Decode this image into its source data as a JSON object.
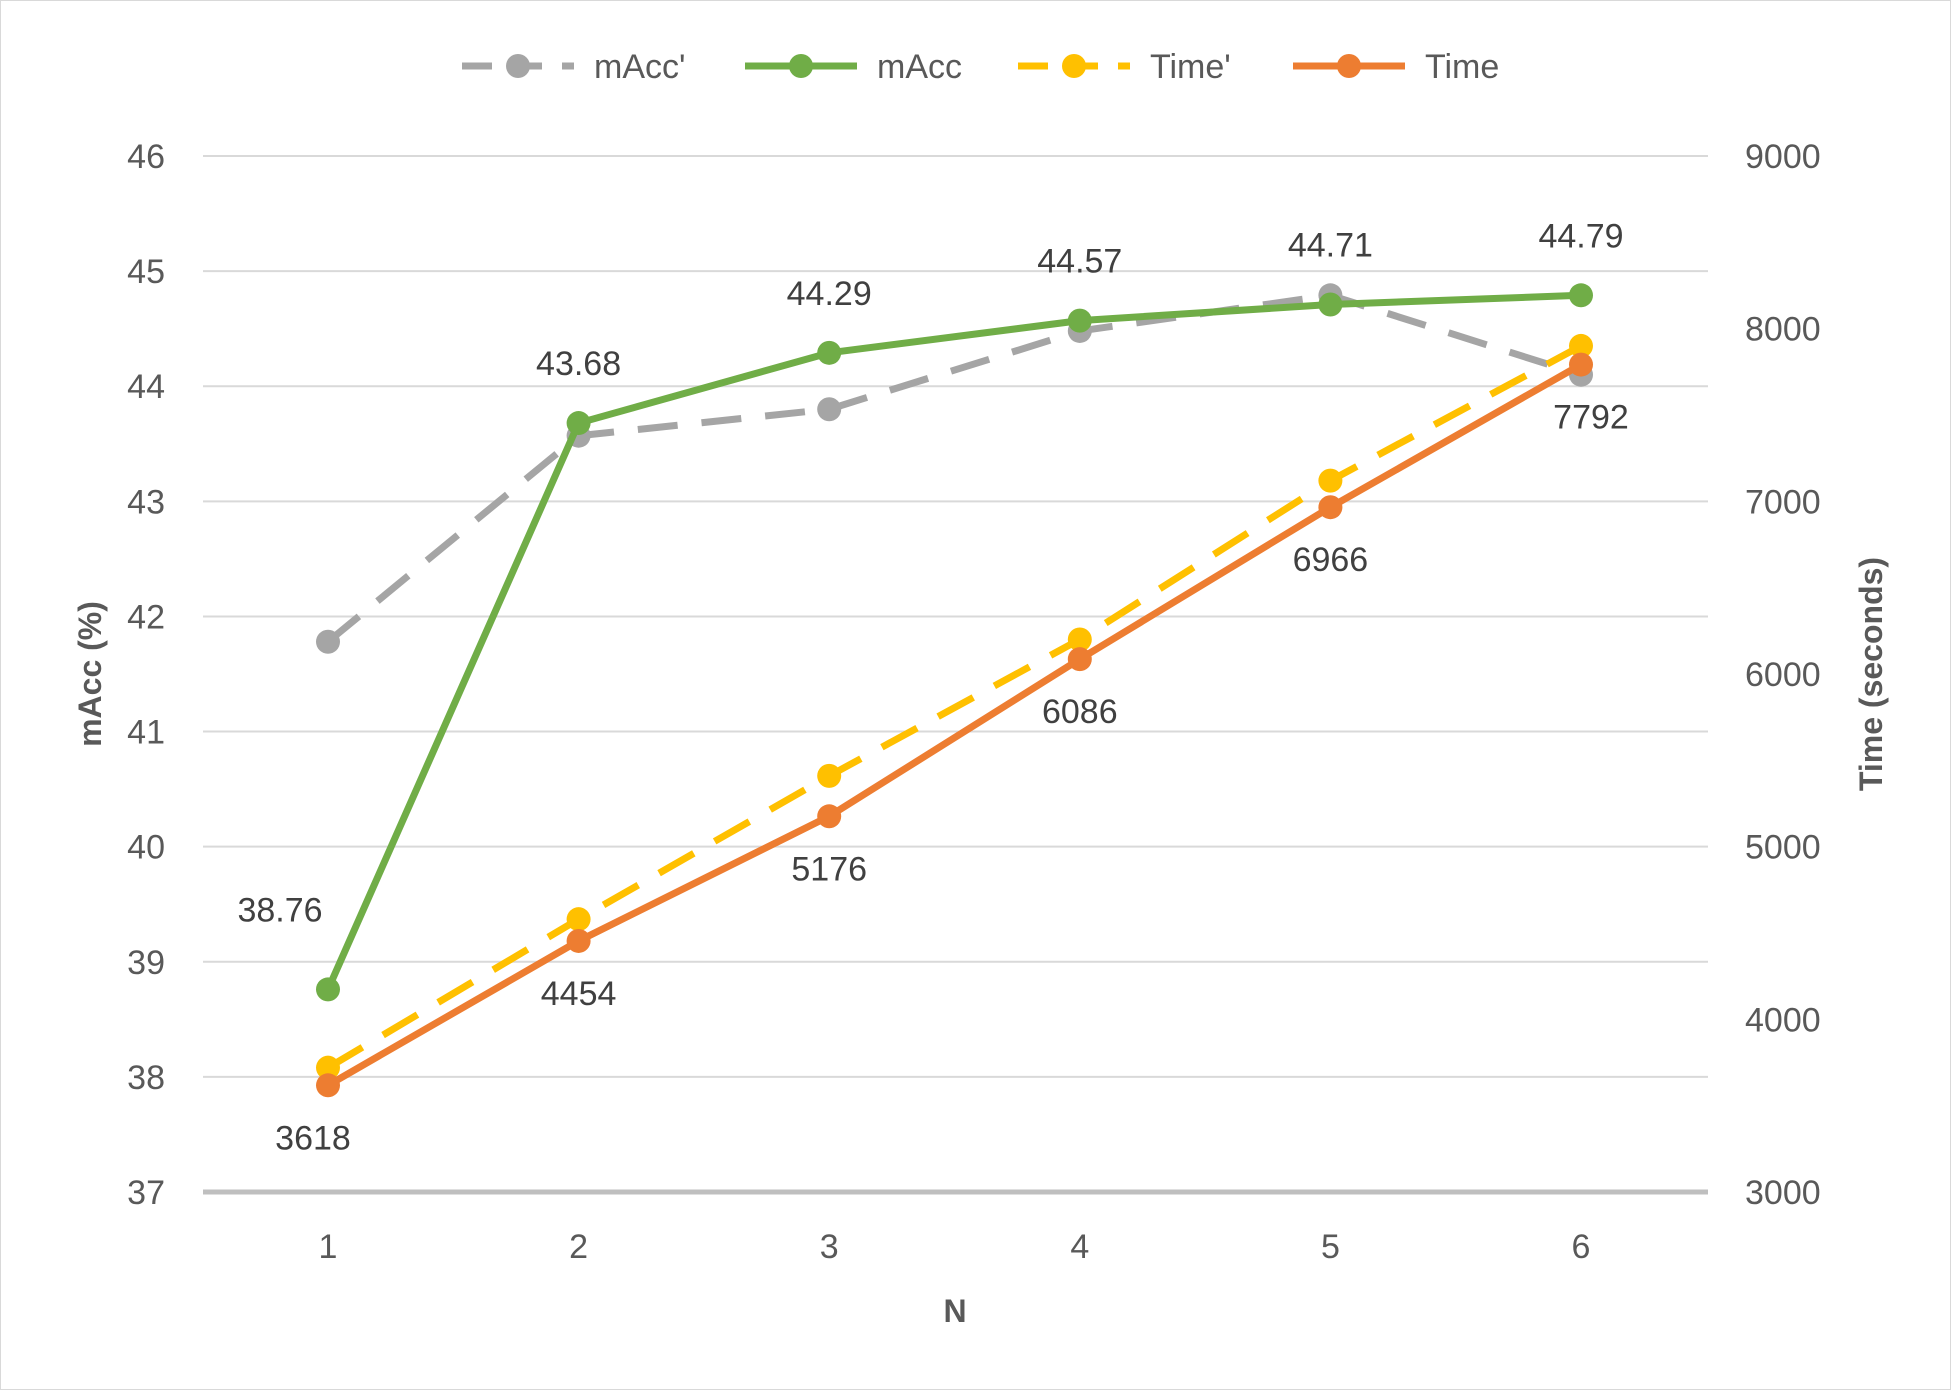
{
  "chart_data": {
    "type": "line",
    "title": "",
    "x": [
      1,
      2,
      3,
      4,
      5,
      6
    ],
    "xlabel": "N",
    "ylabel_left": "mAcc (%)",
    "ylabel_right": "Time (seconds)",
    "ylim_left": [
      37,
      46
    ],
    "ylim_right": [
      3000,
      9000
    ],
    "yticks_left": [
      "37",
      "38",
      "39",
      "40",
      "41",
      "42",
      "43",
      "44",
      "45",
      "46"
    ],
    "yticks_right": [
      "3000",
      "4000",
      "5000",
      "6000",
      "7000",
      "8000",
      "9000"
    ],
    "xticks": [
      "1",
      "2",
      "3",
      "4",
      "5",
      "6"
    ],
    "grid": true,
    "legend_position": "top",
    "series": [
      {
        "name": "mAcc'",
        "axis": "left",
        "style": "dashed",
        "color": "#a5a5a5",
        "values": [
          41.78,
          43.57,
          43.8,
          44.48,
          44.79,
          44.1
        ],
        "labels": []
      },
      {
        "name": "mAcc",
        "axis": "left",
        "style": "solid",
        "color": "#70ad47",
        "values": [
          38.76,
          43.68,
          44.29,
          44.57,
          44.71,
          44.79
        ],
        "labels": [
          "38.76",
          "43.68",
          "44.29",
          "44.57",
          "44.71",
          "44.79"
        ]
      },
      {
        "name": "Time'",
        "axis": "right",
        "style": "dashed",
        "color": "#ffc000",
        "values": [
          3720,
          4580,
          5410,
          6200,
          7120,
          7900
        ],
        "labels": []
      },
      {
        "name": "Time",
        "axis": "right",
        "style": "solid",
        "color": "#ed7d31",
        "values": [
          3618,
          4454,
          5176,
          6086,
          6966,
          7792
        ],
        "labels": [
          "3618",
          "4454",
          "5176",
          "6086",
          "6966",
          "7792"
        ]
      }
    ]
  }
}
